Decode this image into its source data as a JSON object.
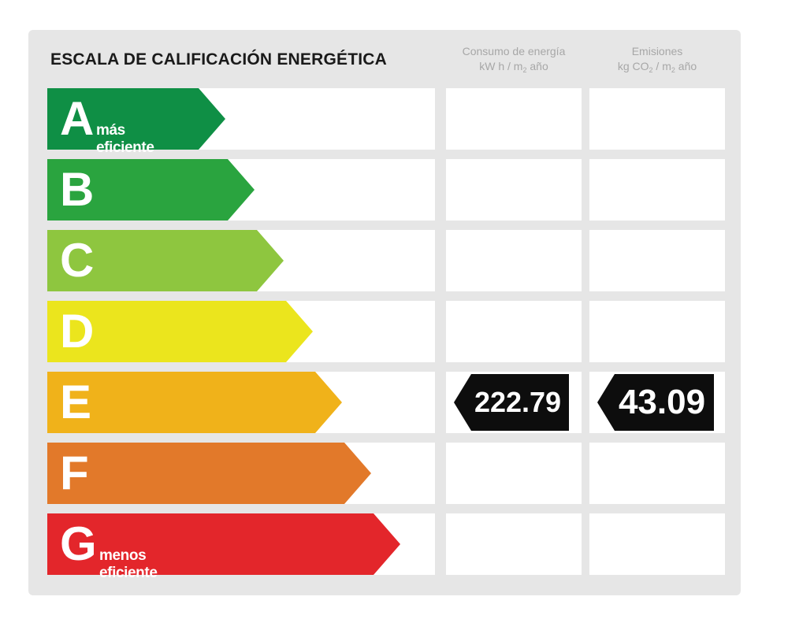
{
  "title": "ESCALA DE CALIFICACIÓN ENERGÉTICA",
  "columns": {
    "energy": {
      "line1": "Consumo de energía",
      "line2_a": "kW h / m",
      "line2_sub": "2",
      "line2_b": " año"
    },
    "emissions": {
      "line1": "Emisiones",
      "line2_a": "kg CO",
      "line2_sub": "2",
      "line2_b": " / m",
      "line2_sub2": "2",
      "line2_c": " año"
    }
  },
  "classes": [
    {
      "letter": "A",
      "caption": "más eficiente",
      "color": "#0f8f45"
    },
    {
      "letter": "B",
      "caption": "",
      "color": "#2aa43f"
    },
    {
      "letter": "C",
      "caption": "",
      "color": "#8ec63f"
    },
    {
      "letter": "D",
      "caption": "",
      "color": "#ebe51d"
    },
    {
      "letter": "E",
      "caption": "",
      "color": "#f0b21a"
    },
    {
      "letter": "F",
      "caption": "",
      "color": "#e2792a"
    },
    {
      "letter": "G",
      "caption": "menos eficiente",
      "color": "#e3262b"
    }
  ],
  "rating": {
    "class": "E",
    "energy_value": "222.79",
    "emissions_value": "43.09"
  }
}
